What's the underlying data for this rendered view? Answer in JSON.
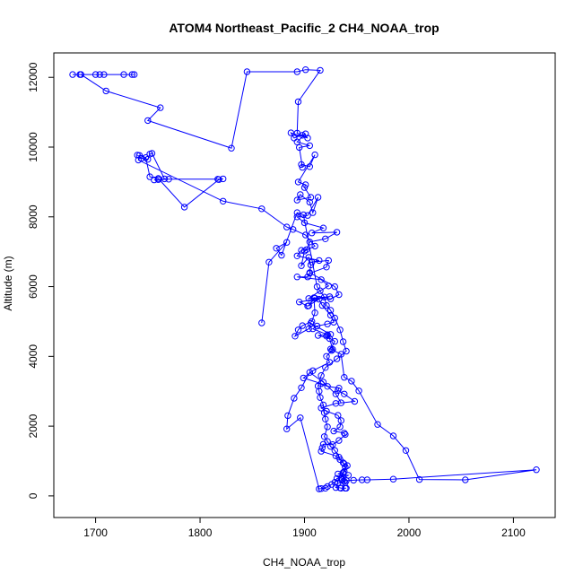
{
  "chart_data": {
    "type": "line",
    "title": "ATOM4 Northeast_Pacific_2 CH4_NOAA_trop",
    "xlabel": "CH4_NOAA_trop",
    "ylabel": "Altitude (m)",
    "xlim": [
      1660,
      2140
    ],
    "ylim": [
      -620,
      12700
    ],
    "x_ticks": [
      1700,
      1800,
      1900,
      2000,
      2100
    ],
    "y_ticks": [
      0,
      2000,
      4000,
      6000,
      8000,
      10000,
      12000
    ],
    "grid": false,
    "legend": "none",
    "marker": "open-circle",
    "color": "#0000ff",
    "series": [
      {
        "x": [
          1678,
          1685,
          1704,
          1727,
          1735,
          1737,
          1708,
          1700,
          1686,
          1710,
          1762,
          1750,
          1830,
          1845,
          1893,
          1901,
          1915,
          1894,
          1893,
          1898,
          1903,
          1887,
          1890,
          1901,
          1893,
          1905,
          1895,
          1898,
          1897,
          1905,
          1910,
          1894,
          1901,
          1900,
          1906,
          1893,
          1896,
          1905,
          1908,
          1913,
          1903,
          1893,
          1900,
          1918,
          1907,
          1931,
          1920,
          1905,
          1902,
          1897,
          1893,
          1914,
          1907,
          1923,
          1921,
          1905,
          1903,
          1893,
          1916,
          1923,
          1915,
          1904,
          1924,
          1895,
          1903,
          1914,
          1917,
          1925,
          1928,
          1922,
          1912,
          1908,
          1922,
          1913,
          1924,
          1927,
          1926,
          1921,
          1924,
          1908,
          1899,
          1916,
          1922,
          1933,
          1932,
          1938,
          1948,
          1930,
          1916,
          1921,
          1932,
          1935,
          1934,
          1928,
          1938,
          1939,
          1933,
          1927,
          1918,
          1917,
          1916,
          1930,
          1934,
          1938,
          1941,
          1937,
          1932,
          1942,
          1935,
          1936
        ],
        "y": [
          12080,
          12080,
          12080,
          12080,
          12080,
          12080,
          12080,
          12080,
          12080,
          11610,
          11130,
          10760,
          9970,
          12160,
          12160,
          12220,
          12200,
          11300,
          10400,
          10340,
          10260,
          10410,
          10260,
          10380,
          10150,
          10040,
          9990,
          9420,
          9500,
          9440,
          9780,
          9000,
          8920,
          8840,
          8560,
          8480,
          8640,
          8420,
          8120,
          8560,
          8040,
          8000,
          7830,
          7680,
          7540,
          7560,
          7370,
          7280,
          7060,
          7040,
          6880,
          6750,
          6700,
          6750,
          6560,
          6380,
          6280,
          6280,
          6200,
          6020,
          5880,
          5660,
          5710,
          5560,
          5440,
          5640,
          5460,
          5180,
          4980,
          4930,
          4870,
          4790,
          4620,
          4600,
          4510,
          4200,
          4170,
          4000,
          3830,
          3590,
          3380,
          3220,
          3140,
          3090,
          3020,
          2920,
          2710,
          2650,
          2520,
          2430,
          2310,
          2160,
          1980,
          1860,
          1800,
          1760,
          1590,
          1470,
          1480,
          1380,
          1280,
          1150,
          1040,
          920,
          870,
          670,
          630,
          590,
          480,
          460
        ],
        "segments": "continuous polyline through all recorded profile points"
      },
      {
        "x": [
          1740,
          1744,
          1750,
          1752,
          1754,
          1766,
          1760,
          1756,
          1770,
          1817,
          1822,
          1818,
          1785,
          1760,
          1752,
          1748,
          1742,
          1741,
          1822,
          1859,
          1883,
          1889,
          1901,
          1910,
          1900,
          1897,
          1904,
          1906,
          1905,
          1929,
          1933,
          1925,
          1910,
          1904,
          1909,
          1910,
          1907,
          1898,
          1894,
          1891,
          1904,
          1906,
          1925,
          1921,
          1929,
          1925,
          1935,
          1938,
          1945,
          1952,
          1970,
          1985,
          1997,
          2010,
          2054,
          2122,
          1985,
          1960,
          1955,
          1947,
          1940,
          1938,
          1939,
          1932,
          1930,
          1934,
          1935,
          1939,
          1940
        ],
        "y": [
          9770,
          9680,
          9650,
          9800,
          9820,
          9090,
          9070,
          9060,
          9080,
          9080,
          9090,
          9070,
          8280,
          9100,
          9150,
          9700,
          9760,
          9630,
          8450,
          8230,
          7710,
          7640,
          7480,
          7160,
          7020,
          6600,
          6840,
          6620,
          6400,
          6000,
          5770,
          5650,
          5670,
          5450,
          5680,
          5250,
          5000,
          4880,
          4760,
          4580,
          4790,
          4950,
          4630,
          4580,
          4430,
          4210,
          4060,
          3400,
          3290,
          3010,
          2050,
          1720,
          1300,
          470,
          460,
          750,
          480,
          460,
          460,
          450,
          440,
          420,
          380,
          370,
          240,
          230,
          220,
          220,
          220
        ]
      },
      {
        "x": [
          1859,
          1866,
          1883,
          1873,
          1878,
          1893,
          1899,
          1912,
          1919,
          1921,
          1925,
          1929,
          1934,
          1937,
          1940,
          1931,
          1920,
          1916,
          1913,
          1914,
          1915,
          1918,
          1919,
          1920,
          1922,
          1919,
          1922,
          1925,
          1929,
          1933,
          1937,
          1939,
          1938,
          1937,
          1935,
          1931,
          1929,
          1926,
          1922,
          1920,
          1916,
          1914,
          1896,
          1883,
          1884,
          1890,
          1897,
          1905,
          1918,
          1930,
          1935
        ],
        "y": [
          4960,
          6700,
          7270,
          7100,
          6900,
          8120,
          8060,
          6000,
          5700,
          5460,
          5320,
          5100,
          4760,
          4420,
          4150,
          3930,
          3680,
          3450,
          3150,
          3000,
          2820,
          2610,
          2380,
          2200,
          1980,
          1700,
          1560,
          1420,
          1300,
          1110,
          950,
          830,
          700,
          640,
          520,
          500,
          390,
          330,
          270,
          220,
          210,
          200,
          2240,
          1920,
          2300,
          2800,
          3100,
          3540,
          3260,
          2920,
          2670
        ]
      }
    ]
  }
}
